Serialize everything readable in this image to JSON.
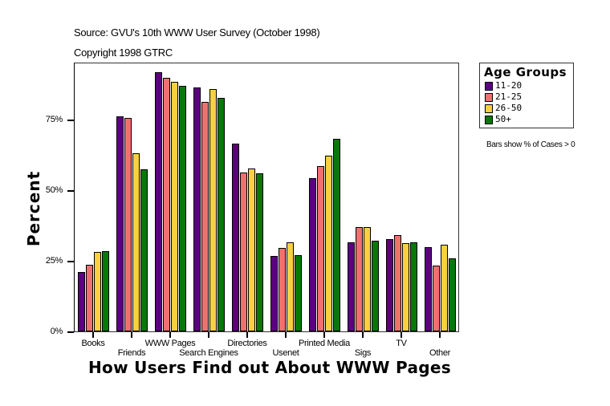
{
  "header": {
    "source": "Source: GVU's 10th WWW User Survey (October 1998)",
    "copyright": "Copyright 1998 GTRC"
  },
  "legend": {
    "title": "Age Groups",
    "items": [
      {
        "label": "11-20",
        "color": "#5c0080"
      },
      {
        "label": "21-25",
        "color": "#f07070"
      },
      {
        "label": "26-50",
        "color": "#f8d040"
      },
      {
        "label": "50+",
        "color": "#087808"
      }
    ],
    "note": "Bars show % of Cases > 0"
  },
  "axes": {
    "y_title": "Percent",
    "x_title": "How Users Find out About WWW Pages",
    "y_ticks": [
      "0%",
      "25%",
      "50%",
      "75%"
    ]
  },
  "chart_data": {
    "type": "bar",
    "title": "How Users Find out About WWW Pages",
    "subtitle": "Source: GVU's 10th WWW User Survey (October 1998)",
    "xlabel": "How Users Find out About WWW Pages",
    "ylabel": "Percent",
    "ylim": [
      0,
      100
    ],
    "y_tick_labels": [
      "0%",
      "25%",
      "50%",
      "75%"
    ],
    "grid": false,
    "legend_position": "right",
    "legend_title": "Age Groups",
    "annotations": [
      "Bars show % of Cases > 0",
      "Copyright 1998 GTRC"
    ],
    "categories": [
      "Books",
      "Friends",
      "WWW Pages",
      "Search Engines",
      "Directories",
      "Usenet",
      "Printed Media",
      "Sigs",
      "TV",
      "Other"
    ],
    "series": [
      {
        "name": "11-20",
        "color": "#5c0080",
        "values": [
          21.0,
          76.1,
          91.7,
          86.3,
          66.4,
          26.6,
          54.2,
          31.4,
          32.6,
          29.7
        ]
      },
      {
        "name": "21-25",
        "color": "#f07070",
        "values": [
          23.5,
          75.5,
          89.7,
          81.2,
          56.2,
          29.5,
          58.4,
          36.8,
          34.0,
          23.2
        ]
      },
      {
        "name": "26-50",
        "color": "#f8d040",
        "values": [
          28.0,
          63.0,
          88.3,
          85.7,
          57.6,
          31.5,
          62.1,
          36.8,
          31.2,
          30.7
        ]
      },
      {
        "name": "50+",
        "color": "#087808",
        "values": [
          28.3,
          57.3,
          86.8,
          82.6,
          55.9,
          26.9,
          68.1,
          32.0,
          31.4,
          25.8
        ]
      }
    ]
  }
}
